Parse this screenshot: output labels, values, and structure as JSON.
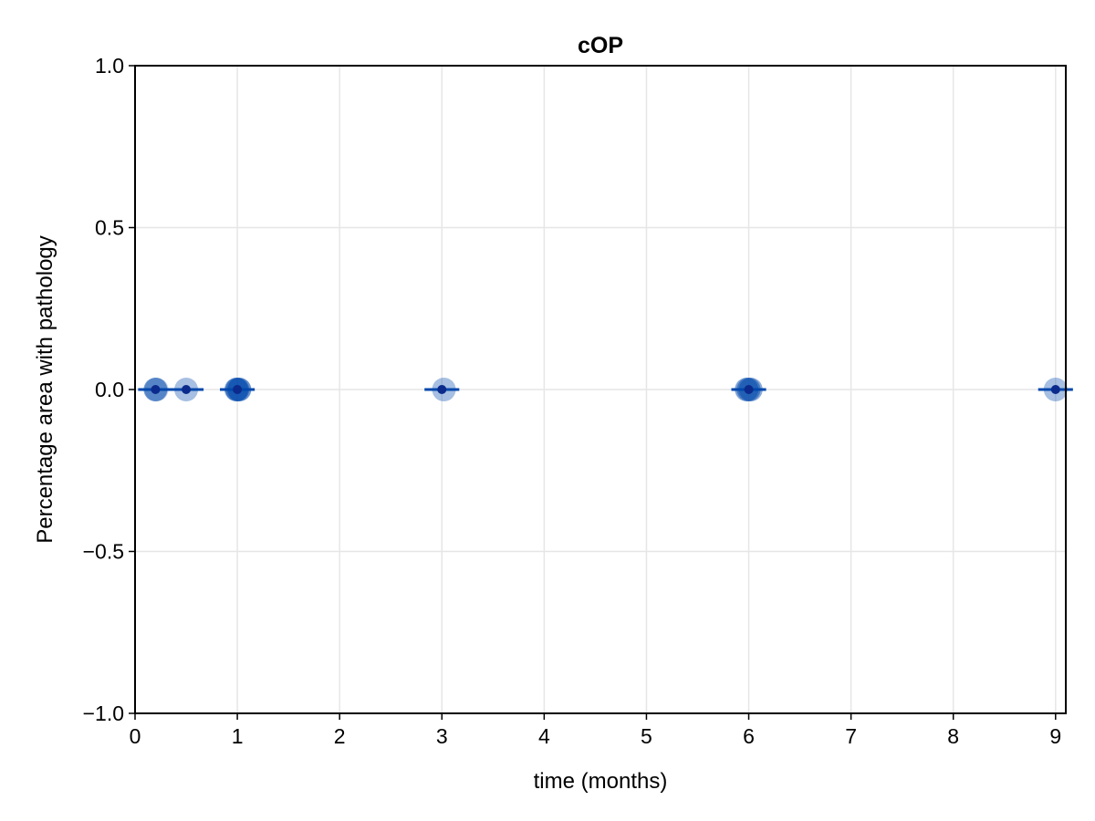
{
  "chart_data": {
    "type": "scatter",
    "title": "cOP",
    "xlabel": "time (months)",
    "ylabel": "Percentage area with pathology",
    "xlim": [
      0,
      9.1
    ],
    "ylim": [
      -1.0,
      1.0
    ],
    "x_ticks": [
      {
        "value": 0,
        "label": "0"
      },
      {
        "value": 1,
        "label": "1"
      },
      {
        "value": 2,
        "label": "2"
      },
      {
        "value": 3,
        "label": "3"
      },
      {
        "value": 4,
        "label": "4"
      },
      {
        "value": 5,
        "label": "5"
      },
      {
        "value": 6,
        "label": "6"
      },
      {
        "value": 7,
        "label": "7"
      },
      {
        "value": 8,
        "label": "8"
      },
      {
        "value": 9,
        "label": "9"
      }
    ],
    "y_ticks": [
      {
        "value": -1.0,
        "label": "−1.0"
      },
      {
        "value": -0.5,
        "label": "−0.5"
      },
      {
        "value": 0.0,
        "label": "0.0"
      },
      {
        "value": 0.5,
        "label": "0.5"
      },
      {
        "value": 1.0,
        "label": "1.0"
      }
    ],
    "grid": true,
    "colors": {
      "marker": "#0047AB",
      "mean_dot": "#0B2A8C",
      "mean_line": "#0047AB",
      "grid": "#E6E6E6",
      "axis": "#000000"
    },
    "points": [
      {
        "x": 0.2,
        "y": 0.0,
        "opacity": 0.55
      },
      {
        "x": 0.21,
        "y": 0.0,
        "opacity": 0.25
      },
      {
        "x": 0.5,
        "y": 0.0,
        "opacity": 0.35
      },
      {
        "x": 0.99,
        "y": 0.0,
        "opacity": 0.5
      },
      {
        "x": 1.0,
        "y": 0.0,
        "opacity": 0.55
      },
      {
        "x": 1.02,
        "y": 0.0,
        "opacity": 0.6
      },
      {
        "x": 3.02,
        "y": 0.0,
        "opacity": 0.35
      },
      {
        "x": 5.98,
        "y": 0.0,
        "opacity": 0.5
      },
      {
        "x": 6.0,
        "y": 0.0,
        "opacity": 0.5
      },
      {
        "x": 6.02,
        "y": 0.0,
        "opacity": 0.45
      },
      {
        "x": 9.0,
        "y": 0.0,
        "opacity": 0.35
      }
    ],
    "means": [
      {
        "x": 0.2,
        "y": 0.0
      },
      {
        "x": 0.5,
        "y": 0.0
      },
      {
        "x": 1.0,
        "y": 0.0
      },
      {
        "x": 3.0,
        "y": 0.0
      },
      {
        "x": 6.0,
        "y": 0.0
      },
      {
        "x": 9.0,
        "y": 0.0
      }
    ],
    "mean_line_halfwidth": 0.17
  }
}
